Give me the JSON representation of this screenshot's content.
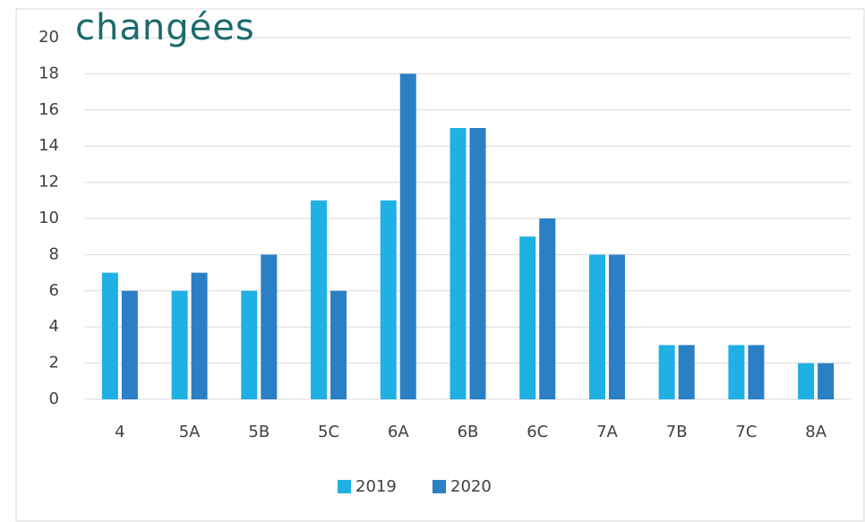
{
  "chart_data": {
    "type": "bar",
    "title": "changées",
    "categories": [
      "4",
      "5A",
      "5B",
      "5C",
      "6A",
      "6B",
      "6C",
      "7A",
      "7B",
      "7C",
      "8A"
    ],
    "series": [
      {
        "name": "2019",
        "color": "#1fb0e4",
        "values": [
          7,
          6,
          6,
          11,
          11,
          15,
          9,
          8,
          3,
          3,
          2
        ]
      },
      {
        "name": "2020",
        "color": "#2a7fc5",
        "values": [
          6,
          7,
          8,
          6,
          18,
          15,
          10,
          8,
          3,
          3,
          2
        ]
      }
    ],
    "ylim": [
      0,
      20
    ],
    "yticks": [
      0,
      2,
      4,
      6,
      8,
      10,
      12,
      14,
      16,
      18,
      20
    ],
    "grid": true,
    "legend": "bottom"
  }
}
